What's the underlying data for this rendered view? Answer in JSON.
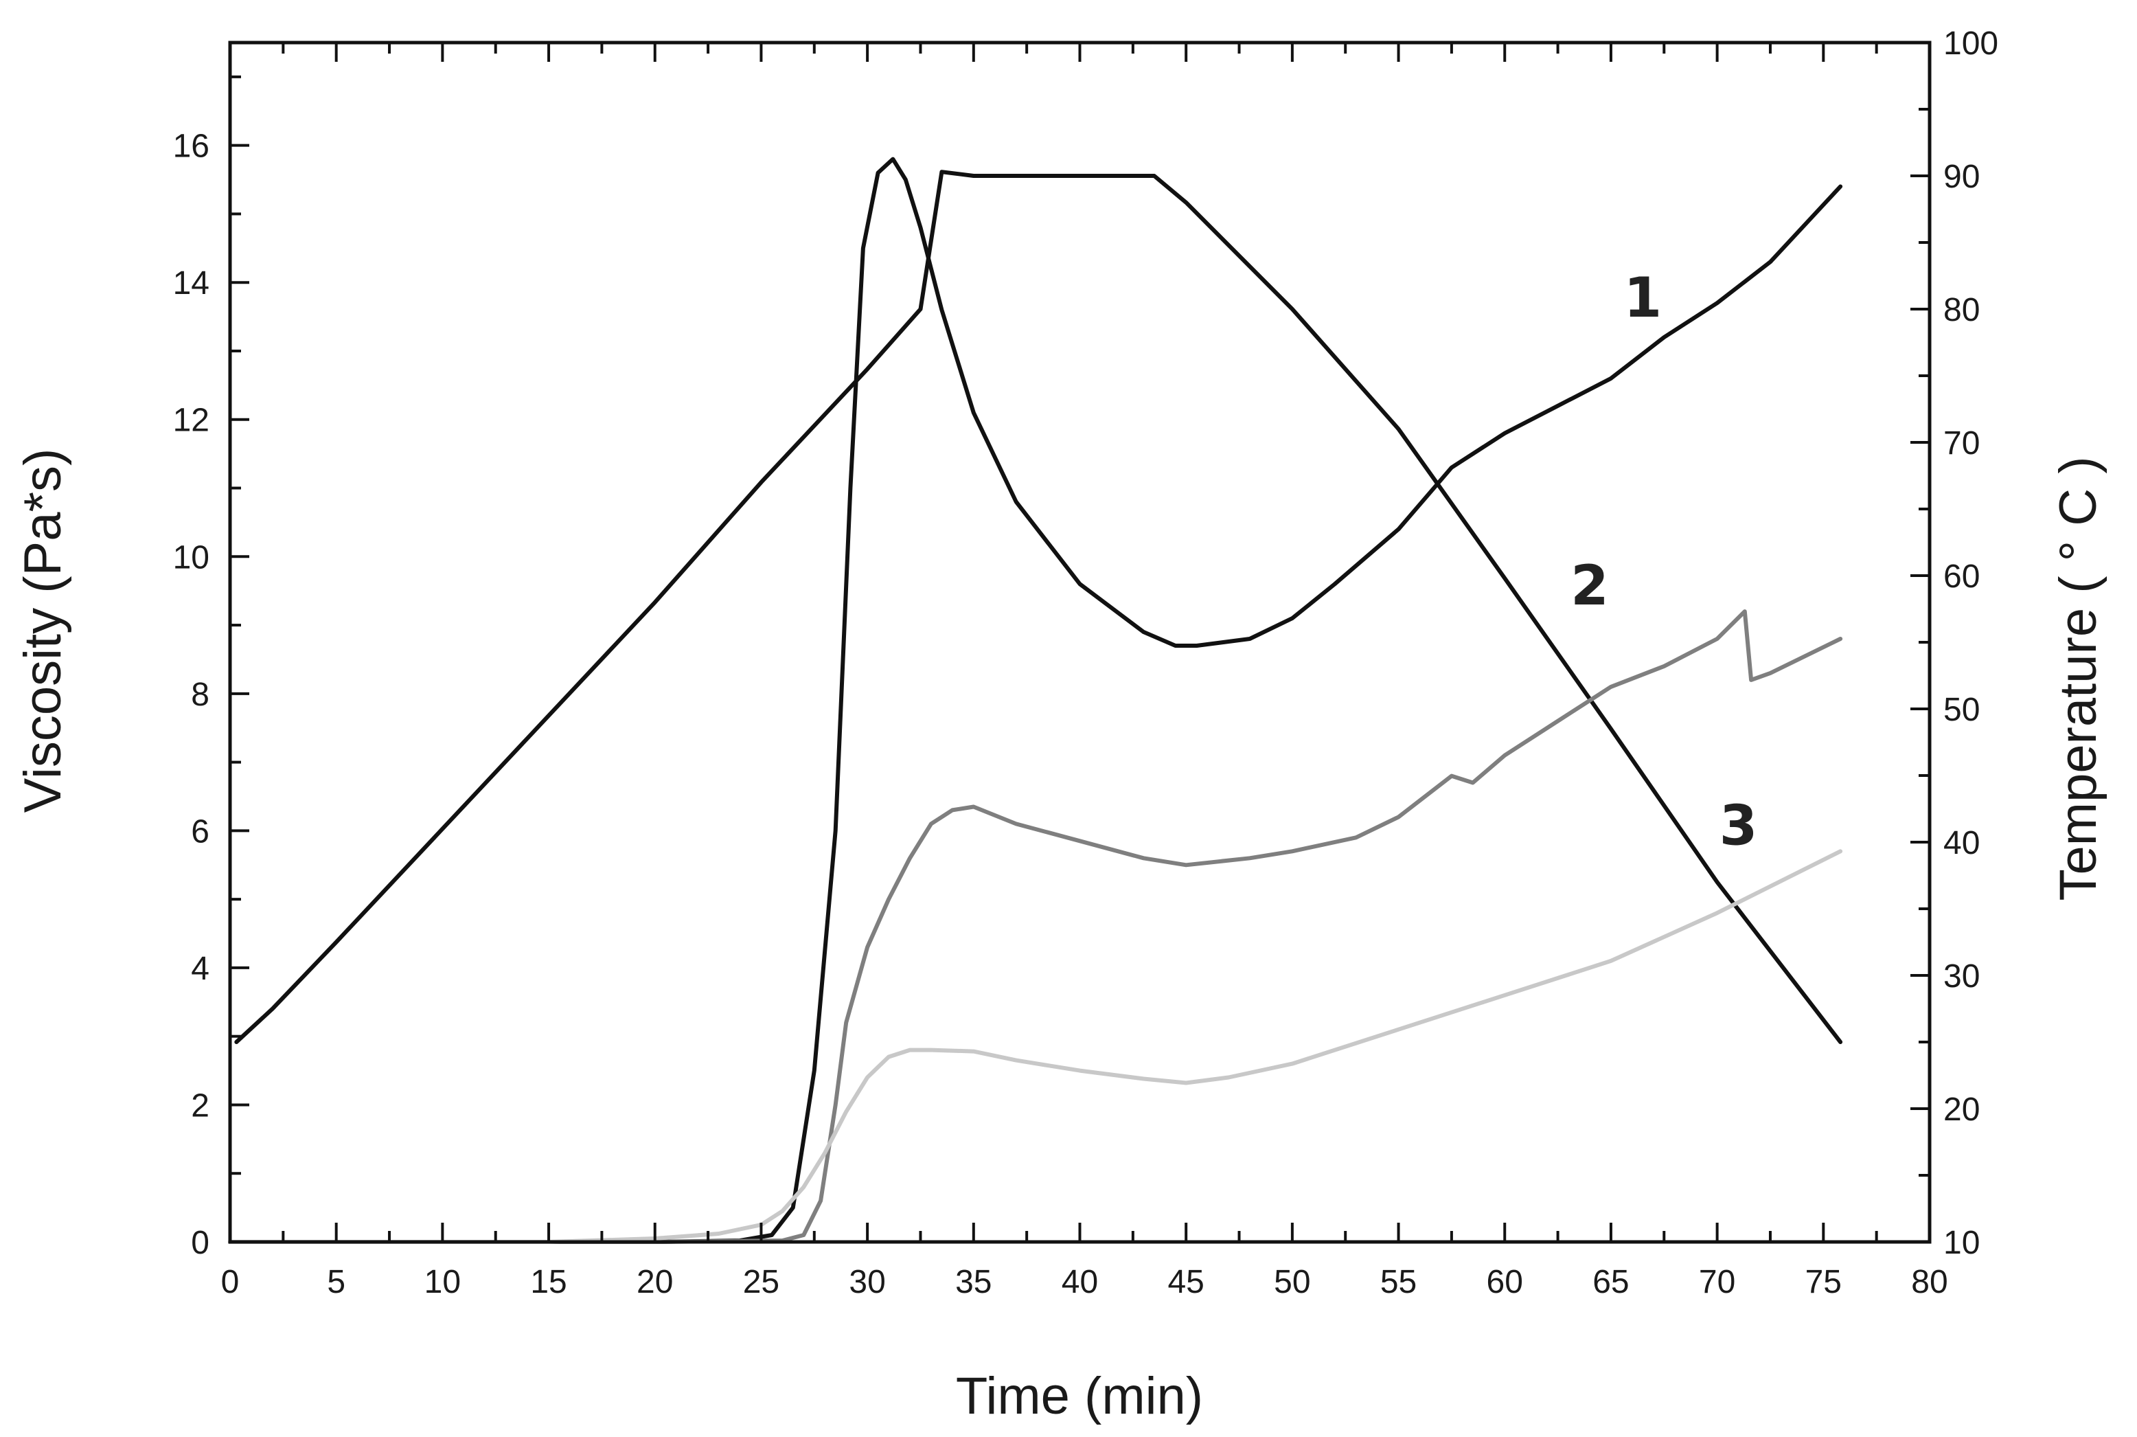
{
  "chart_data": {
    "type": "line",
    "title": "",
    "xlabel": "Time (min)",
    "ylabel": "Viscosity (Pa*s)",
    "y2label": "Temperature ( ° C )",
    "xlim": [
      0,
      80
    ],
    "ylim": [
      0,
      17.5
    ],
    "y2lim": [
      10,
      100
    ],
    "grid": false,
    "x_ticks": [
      0,
      5,
      10,
      15,
      20,
      25,
      30,
      35,
      40,
      45,
      50,
      55,
      60,
      65,
      70,
      75,
      80
    ],
    "y_ticks": [
      0,
      2,
      4,
      6,
      8,
      10,
      12,
      14,
      16
    ],
    "y2_ticks": [
      10,
      20,
      30,
      40,
      50,
      60,
      70,
      80,
      90,
      100
    ],
    "series": [
      {
        "name": "Temperature",
        "axis": "right",
        "color": "#111111",
        "x": [
          0.3,
          2,
          5,
          10,
          15,
          20,
          25,
          30,
          32.5,
          33.5,
          35,
          40,
          43.5,
          45,
          50,
          55,
          60,
          65,
          70,
          75.8
        ],
        "y": [
          25,
          27.5,
          32.5,
          41,
          49.5,
          58,
          67,
          75.5,
          80,
          90.3,
          90,
          90,
          90,
          88,
          80,
          71,
          59.8,
          48.5,
          37,
          25
        ]
      },
      {
        "name": "1",
        "axis": "left",
        "color": "#111111",
        "x": [
          0,
          20,
          24,
          25.5,
          26.5,
          27.5,
          28.5,
          29.2,
          29.8,
          30.5,
          31.2,
          31.8,
          32.5,
          33.5,
          35,
          37,
          40,
          43,
          44.5,
          45.5,
          48,
          50,
          52,
          55,
          57.5,
          60,
          62.5,
          65,
          67.5,
          70,
          72.5,
          75.8
        ],
        "y": [
          0,
          0,
          0.02,
          0.1,
          0.5,
          2.5,
          6,
          11,
          14.5,
          15.6,
          15.8,
          15.5,
          14.8,
          13.6,
          12.1,
          10.8,
          9.6,
          8.9,
          8.7,
          8.7,
          8.8,
          9.1,
          9.6,
          10.4,
          11.3,
          11.8,
          12.2,
          12.6,
          13.2,
          13.7,
          14.3,
          15.4
        ]
      },
      {
        "name": "2",
        "axis": "left",
        "color": "#7f7f7f",
        "x": [
          0,
          20,
          26,
          27,
          27.8,
          28.5,
          29,
          30,
          31,
          32,
          33,
          34,
          35,
          37,
          40,
          43,
          45,
          48,
          50,
          53,
          55,
          57.5,
          58.5,
          60,
          62.5,
          65,
          67.5,
          70,
          71.3,
          71.6,
          72.5,
          75.8
        ],
        "y": [
          0,
          0,
          0.02,
          0.1,
          0.6,
          2,
          3.2,
          4.3,
          5,
          5.6,
          6.1,
          6.3,
          6.35,
          6.1,
          5.85,
          5.6,
          5.5,
          5.6,
          5.7,
          5.9,
          6.2,
          6.8,
          6.7,
          7.1,
          7.6,
          8.1,
          8.4,
          8.8,
          9.2,
          8.2,
          8.3,
          8.8
        ]
      },
      {
        "name": "3",
        "axis": "left",
        "color": "#c8c8c8",
        "x": [
          0,
          15,
          20,
          23,
          25,
          26,
          27,
          28,
          29,
          30,
          31,
          32,
          33,
          35,
          37,
          40,
          43,
          45,
          47,
          50,
          55,
          60,
          65,
          70,
          75.8
        ],
        "y": [
          0,
          0,
          0.05,
          0.12,
          0.25,
          0.45,
          0.8,
          1.3,
          1.9,
          2.4,
          2.7,
          2.8,
          2.8,
          2.78,
          2.65,
          2.5,
          2.38,
          2.32,
          2.4,
          2.6,
          3.1,
          3.6,
          4.1,
          4.8,
          5.7
        ]
      }
    ],
    "annotations": [
      {
        "text": "1",
        "x": 66.5,
        "y": 13.5
      },
      {
        "text": "2",
        "x": 64,
        "y": 9.3
      },
      {
        "text": "3",
        "x": 71,
        "y": 5.8
      }
    ]
  }
}
